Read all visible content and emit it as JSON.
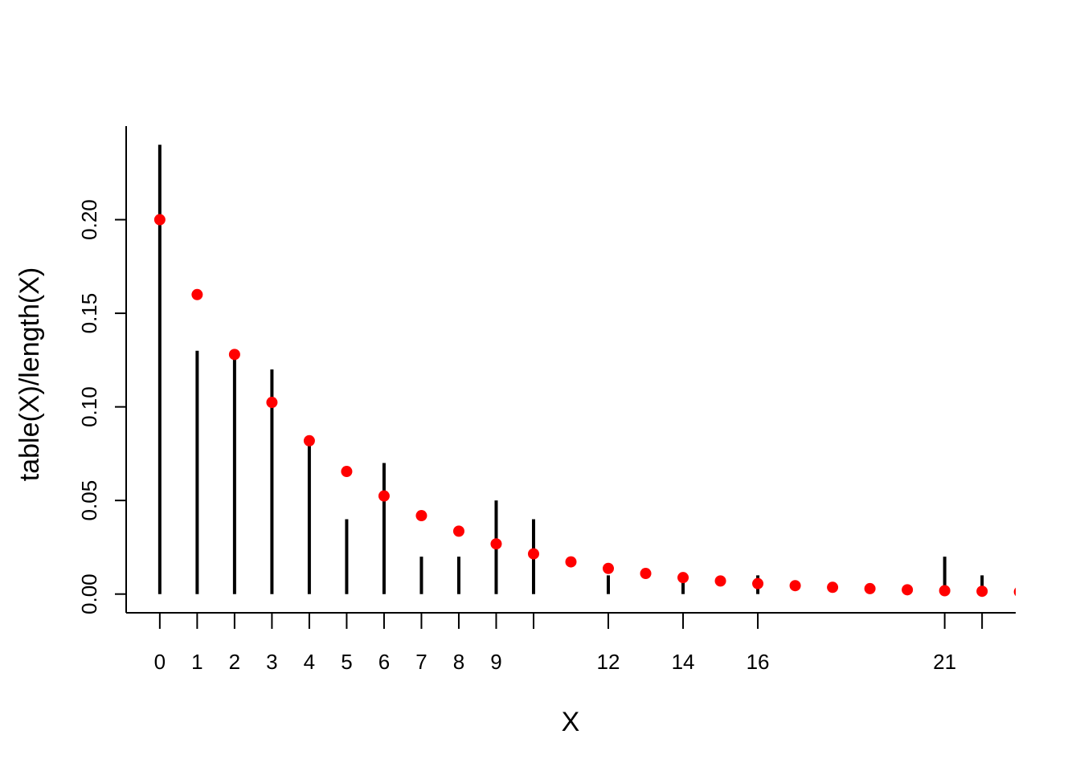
{
  "chart_data": {
    "type": "scatter",
    "title": "",
    "xlabel": "X",
    "ylabel": "table(X)/length(X)",
    "xlim": [
      -0.9,
      22.9
    ],
    "ylim": [
      -0.01,
      0.25
    ],
    "x_ticks": [
      0,
      1,
      2,
      3,
      4,
      5,
      6,
      7,
      8,
      9,
      10,
      12,
      14,
      16,
      21,
      22
    ],
    "x_tick_labels": [
      "0",
      "1",
      "2",
      "3",
      "4",
      "5",
      "6",
      "7",
      "8",
      "9",
      "12",
      "14",
      "16",
      "21"
    ],
    "x_tick_label_positions": [
      0,
      1,
      2,
      3,
      4,
      5,
      6,
      7,
      8,
      9,
      12,
      14,
      16,
      21
    ],
    "y_ticks": [
      0.0,
      0.05,
      0.1,
      0.15,
      0.2
    ],
    "y_tick_labels": [
      "0.00",
      "0.05",
      "0.10",
      "0.15",
      "0.20"
    ],
    "series": [
      {
        "render": "histogram-spikes",
        "color": "#000000",
        "x": [
          0,
          1,
          2,
          3,
          4,
          5,
          6,
          7,
          8,
          9,
          10,
          12,
          14,
          16,
          21,
          22
        ],
        "values": [
          0.24,
          0.13,
          0.13,
          0.12,
          0.08,
          0.04,
          0.07,
          0.02,
          0.02,
          0.05,
          0.04,
          0.01,
          0.01,
          0.01,
          0.02,
          0.01
        ]
      },
      {
        "render": "points",
        "color": "#ff0000",
        "x": [
          0,
          1,
          2,
          3,
          4,
          5,
          6,
          7,
          8,
          9,
          10,
          11,
          12,
          13,
          14,
          15,
          16,
          17,
          18,
          19,
          20,
          21,
          22,
          23
        ],
        "values": [
          0.2,
          0.16,
          0.128,
          0.1024,
          0.0819,
          0.0655,
          0.0524,
          0.0419,
          0.0336,
          0.0268,
          0.0215,
          0.0172,
          0.0137,
          0.011,
          0.0088,
          0.007,
          0.0056,
          0.0045,
          0.0036,
          0.0029,
          0.0023,
          0.0018,
          0.0015,
          0.0012
        ]
      }
    ]
  }
}
